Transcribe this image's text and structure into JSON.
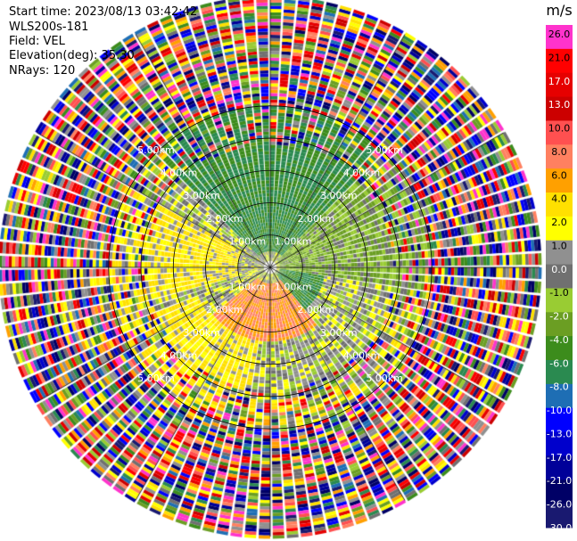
{
  "info": {
    "start_time": "Start time: 2023/08/13 03:42:42",
    "instrument": "WLS200s-181",
    "field": "Field: VEL",
    "elevation": "Elevation(deg): 35.30",
    "nrays": "NRays: 120"
  },
  "chart_data": {
    "type": "heatmap",
    "projection": "polar-ppi",
    "field": "VEL",
    "units": "m/s",
    "nrays": 120,
    "max_range_km": 5.0,
    "range_rings_km": [
      1.0,
      2.0,
      3.0,
      4.0,
      5.0
    ],
    "ring_labels": [
      "1.00km",
      "2.00km",
      "3.00km",
      "4.00km",
      "5.00km"
    ],
    "colorbar": {
      "title": "m/s",
      "ticks": [
        "26.0",
        "21.0",
        "17.0",
        "13.0",
        "10.0",
        "8.0",
        "6.0",
        "4.0",
        "2.0",
        "1.0",
        "0.0",
        "-1.0",
        "-2.0",
        "-4.0",
        "-6.0",
        "-8.0",
        "-10.0",
        "-13.0",
        "-17.0",
        "-21.0",
        "-26.0",
        "-30.0"
      ],
      "colors": [
        "#ff33cc",
        "#ff0000",
        "#e60000",
        "#cc0000",
        "#ff5050",
        "#ff8060",
        "#ffa000",
        "#ffe000",
        "#ffff00",
        "#909090",
        "#707070",
        "#99cc33",
        "#6b9e23",
        "#3c8c1c",
        "#2a8a50",
        "#1e6eb4",
        "#0000ff",
        "#0000cc",
        "#000099",
        "#000066",
        "#191970"
      ]
    },
    "pattern": {
      "inner_range_km": 2.3,
      "noise_beyond_km": 3.0,
      "regions": [
        {
          "azimuth_deg": [
            315,
            45
          ],
          "range_km": [
            0.3,
            2.3
          ],
          "velocity_ms": -6.0
        },
        {
          "azimuth_deg": [
            45,
            100
          ],
          "range_km": [
            0.2,
            2.4
          ],
          "velocity_ms": -2.0
        },
        {
          "azimuth_deg": [
            100,
            140
          ],
          "range_km": [
            0.2,
            1.0
          ],
          "velocity_ms": -6.0
        },
        {
          "azimuth_deg": [
            140,
            230
          ],
          "range_km": [
            0.3,
            1.4
          ],
          "velocity_ms": 6.0
        },
        {
          "azimuth_deg": [
            190,
            250
          ],
          "range_km": [
            1.4,
            2.4
          ],
          "velocity_ms": 2.0
        },
        {
          "azimuth_deg": [
            255,
            300
          ],
          "range_km": [
            0.6,
            2.4
          ],
          "velocity_ms": 2.0
        },
        {
          "azimuth_deg": [
            260,
            330
          ],
          "range_km": [
            0.2,
            0.6
          ],
          "velocity_ms": 0.0
        }
      ]
    }
  }
}
